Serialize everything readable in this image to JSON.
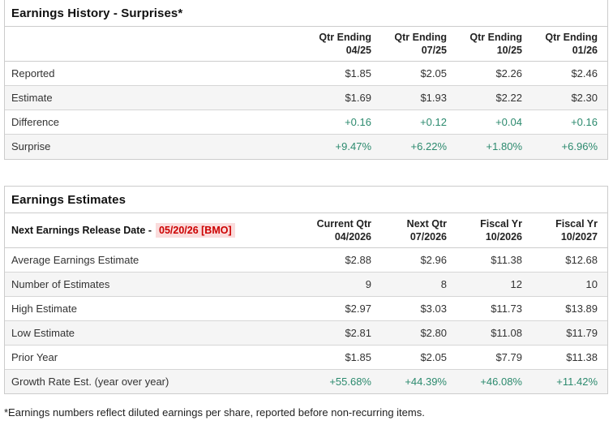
{
  "surprises": {
    "title": "Earnings History - Surprises*",
    "columns": [
      {
        "line1": "Qtr Ending",
        "line2": "04/25"
      },
      {
        "line1": "Qtr Ending",
        "line2": "07/25"
      },
      {
        "line1": "Qtr Ending",
        "line2": "10/25"
      },
      {
        "line1": "Qtr Ending",
        "line2": "01/26"
      }
    ],
    "rows": [
      {
        "label": "Reported",
        "values": [
          "$1.85",
          "$2.05",
          "$2.26",
          "$2.46"
        ]
      },
      {
        "label": "Estimate",
        "values": [
          "$1.69",
          "$1.93",
          "$2.22",
          "$2.30"
        ]
      },
      {
        "label": "Difference",
        "values": [
          "+0.16",
          "+0.12",
          "+0.04",
          "+0.16"
        ]
      },
      {
        "label": "Surprise",
        "values": [
          "+9.47%",
          "+6.22%",
          "+1.80%",
          "+6.96%"
        ]
      }
    ]
  },
  "estimates": {
    "title": "Earnings Estimates",
    "release_label": "Next Earnings Release Date -",
    "release_date": "05/20/26 [BMO]",
    "columns": [
      {
        "line1": "Current Qtr",
        "line2": "04/2026"
      },
      {
        "line1": "Next Qtr",
        "line2": "07/2026"
      },
      {
        "line1": "Fiscal Yr",
        "line2": "10/2026"
      },
      {
        "line1": "Fiscal Yr",
        "line2": "10/2027"
      }
    ],
    "rows": [
      {
        "label": "Average Earnings Estimate",
        "values": [
          "$2.88",
          "$2.96",
          "$11.38",
          "$12.68"
        ]
      },
      {
        "label": "Number of Estimates",
        "values": [
          "9",
          "8",
          "12",
          "10"
        ]
      },
      {
        "label": "High Estimate",
        "values": [
          "$2.97",
          "$3.03",
          "$11.73",
          "$13.89"
        ]
      },
      {
        "label": "Low Estimate",
        "values": [
          "$2.81",
          "$2.80",
          "$11.08",
          "$11.79"
        ]
      },
      {
        "label": "Prior Year",
        "values": [
          "$1.85",
          "$2.05",
          "$7.79",
          "$11.38"
        ]
      },
      {
        "label": "Growth Rate Est. (year over year)",
        "values": [
          "+55.68%",
          "+44.39%",
          "+46.08%",
          "+11.42%"
        ]
      }
    ]
  },
  "footnote": "*Earnings numbers reflect diluted earnings per share, reported before non-recurring items.",
  "colors": {
    "positive_green": "#2c8a6e",
    "alert_red": "#cc0000",
    "alert_red_bg": "#fadcdc",
    "stripe_gray": "#f5f5f5",
    "border_gray": "#cccccc"
  }
}
